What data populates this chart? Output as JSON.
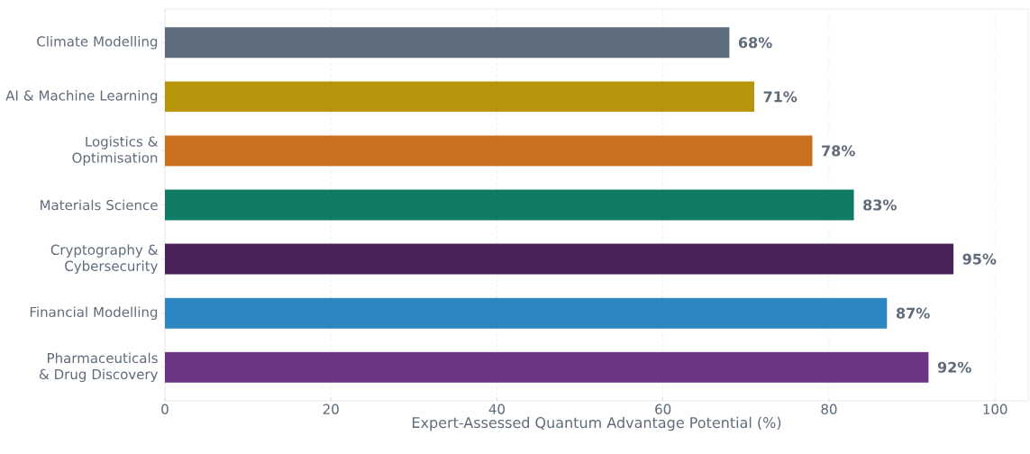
{
  "chart_data": {
    "type": "bar",
    "orientation": "horizontal",
    "xlabel": "Expert-Assessed Quantum Advantage Potential (%)",
    "categories": [
      "Climate Modelling",
      "AI & Machine Learning",
      "Logistics & Optimisation",
      "Materials Science",
      "Cryptography & Cybersecurity",
      "Financial Modelling",
      "Pharmaceuticals & Drug Discovery"
    ],
    "values": [
      68,
      71,
      78,
      83,
      95,
      87,
      92
    ],
    "colors": [
      "#5d6d7e",
      "#b7950b",
      "#ca6f1e",
      "#117a65",
      "#4a235a",
      "#2e86c1",
      "#6c3483"
    ],
    "value_labels": [
      "68%",
      "71%",
      "78%",
      "83%",
      "95%",
      "87%",
      "92%"
    ],
    "xlim": [
      0,
      104
    ],
    "xticks": [
      0,
      20,
      40,
      60,
      80,
      100
    ],
    "grid": "x"
  }
}
